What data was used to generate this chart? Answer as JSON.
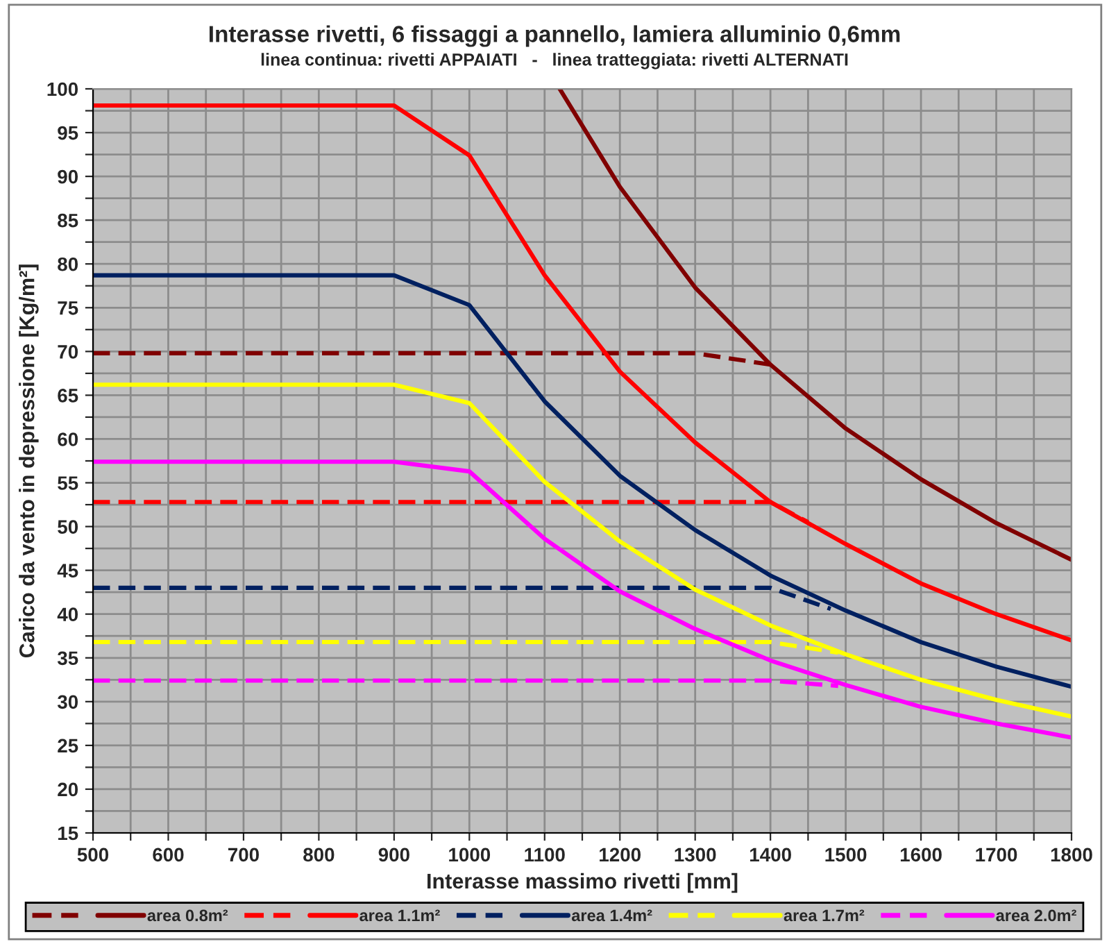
{
  "chart_data": {
    "type": "line",
    "title": "Interasse rivetti, 6 fissaggi a pannello, lamiera alluminio 0,6mm",
    "subtitle": "linea continua: rivetti APPAIATI   -   linea tratteggiata: rivetti ALTERNATI",
    "xlabel": "Interasse massimo rivetti [mm]",
    "ylabel": "Carico da vento in depressione [Kg/m²]",
    "xlim": [
      500,
      1800
    ],
    "ylim": [
      15,
      100
    ],
    "xticks": [
      500,
      {
        "value": 550,
        "label": null
      },
      600,
      {
        "value": 650,
        "label": null
      },
      700,
      {
        "value": 750,
        "label": null
      },
      800,
      {
        "value": 850,
        "label": null
      },
      900,
      {
        "value": 950,
        "label": null
      },
      1000,
      {
        "value": 1050,
        "label": null
      },
      1100,
      {
        "value": 1150,
        "label": null
      },
      1200,
      {
        "value": 1250,
        "label": null
      },
      1300,
      {
        "value": 1350,
        "label": null
      },
      1400,
      {
        "value": 1450,
        "label": null
      },
      1500,
      {
        "value": 1550,
        "label": null
      },
      1600,
      {
        "value": 1650,
        "label": null
      },
      1700,
      {
        "value": 1750,
        "label": null
      },
      1800
    ],
    "yticks": [
      15,
      {
        "value": 17.5,
        "label": null
      },
      20,
      {
        "value": 22.5,
        "label": null
      },
      25,
      {
        "value": 27.5,
        "label": null
      },
      30,
      {
        "value": 32.5,
        "label": null
      },
      35,
      {
        "value": 37.5,
        "label": null
      },
      40,
      {
        "value": 42.5,
        "label": null
      },
      45,
      {
        "value": 47.5,
        "label": null
      },
      50,
      {
        "value": 52.5,
        "label": null
      },
      55,
      {
        "value": 57.5,
        "label": null
      },
      60,
      {
        "value": 62.5,
        "label": null
      },
      65,
      {
        "value": 67.5,
        "label": null
      },
      70,
      {
        "value": 72.5,
        "label": null
      },
      75,
      {
        "value": 77.5,
        "label": null
      },
      80,
      {
        "value": 82.5,
        "label": null
      },
      85,
      {
        "value": 87.5,
        "label": null
      },
      90,
      {
        "value": 92.5,
        "label": null
      },
      95,
      {
        "value": 97.5,
        "label": null
      },
      100
    ],
    "grid": true,
    "legend": "bottom",
    "marker": "none",
    "series": [
      {
        "color": "#800000",
        "line_style": "dashed",
        "x": [
          500,
          600,
          700,
          800,
          900,
          1000,
          1100,
          1200,
          1300,
          1400
        ],
        "values": [
          69.8,
          69.8,
          69.8,
          69.8,
          69.8,
          69.8,
          69.8,
          69.8,
          69.8,
          68.5
        ]
      },
      {
        "name": "area 0.8m²",
        "color": "#800000",
        "line_style": "solid",
        "x": [
          1120,
          1200,
          1300,
          1400,
          1500,
          1600,
          1700,
          1800
        ],
        "values": [
          100,
          88.8,
          77.3,
          68.5,
          61.2,
          55.4,
          50.4,
          46.2
        ]
      },
      {
        "color": "#ff0000",
        "line_style": "dashed",
        "x": [
          500,
          600,
          700,
          800,
          900,
          1000,
          1100,
          1200,
          1300,
          1400,
          1450
        ],
        "values": [
          52.8,
          52.8,
          52.8,
          52.8,
          52.8,
          52.8,
          52.8,
          52.8,
          52.8,
          52.8,
          50.5
        ]
      },
      {
        "name": "area 1.1m²",
        "color": "#ff0000",
        "line_style": "solid",
        "x": [
          500,
          600,
          700,
          800,
          900,
          1000,
          1100,
          1200,
          1300,
          1400,
          1500,
          1600,
          1700,
          1800
        ],
        "values": [
          98.1,
          98.1,
          98.1,
          98.1,
          98.1,
          92.4,
          78.7,
          67.7,
          59.6,
          52.8,
          48.0,
          43.5,
          40.0,
          37.0
        ]
      },
      {
        "color": "#002060",
        "line_style": "dashed",
        "x": [
          500,
          600,
          700,
          800,
          900,
          1000,
          1100,
          1200,
          1300,
          1400,
          1480
        ],
        "values": [
          43.0,
          43.0,
          43.0,
          43.0,
          43.0,
          43.0,
          43.0,
          43.0,
          43.0,
          43.0,
          40.6
        ]
      },
      {
        "name": "area 1.4m²",
        "color": "#002060",
        "line_style": "solid",
        "x": [
          500,
          600,
          700,
          800,
          900,
          1000,
          1100,
          1200,
          1300,
          1400,
          1500,
          1600,
          1700,
          1800
        ],
        "values": [
          78.7,
          78.7,
          78.7,
          78.7,
          78.7,
          75.3,
          64.3,
          55.8,
          49.6,
          44.4,
          40.4,
          36.8,
          34.0,
          31.7
        ]
      },
      {
        "color": "#ffff00",
        "line_style": "dashed",
        "x": [
          500,
          600,
          700,
          800,
          900,
          1000,
          1100,
          1200,
          1300,
          1400,
          1490
        ],
        "values": [
          36.8,
          36.8,
          36.8,
          36.8,
          36.8,
          36.8,
          36.8,
          36.8,
          36.8,
          36.8,
          35.6
        ]
      },
      {
        "name": "area 1.7m²",
        "color": "#ffff00",
        "line_style": "solid",
        "x": [
          500,
          600,
          700,
          800,
          900,
          1000,
          1100,
          1200,
          1300,
          1400,
          1500,
          1600,
          1700,
          1800
        ],
        "values": [
          66.2,
          66.2,
          66.2,
          66.2,
          66.2,
          64.1,
          55.1,
          48.3,
          42.8,
          38.7,
          35.4,
          32.5,
          30.2,
          28.3
        ]
      },
      {
        "color": "#ff00ff",
        "line_style": "dashed",
        "x": [
          500,
          600,
          700,
          800,
          900,
          1000,
          1100,
          1200,
          1300,
          1400,
          1490
        ],
        "values": [
          32.4,
          32.4,
          32.4,
          32.4,
          32.4,
          32.4,
          32.4,
          32.4,
          32.4,
          32.4,
          31.8
        ]
      },
      {
        "name": "area 2.0m²",
        "color": "#ff00ff",
        "line_style": "solid",
        "x": [
          500,
          600,
          700,
          800,
          900,
          1000,
          1100,
          1200,
          1300,
          1400,
          1500,
          1600,
          1700,
          1800
        ],
        "values": [
          57.4,
          57.4,
          57.4,
          57.4,
          57.4,
          56.3,
          48.6,
          42.6,
          38.3,
          34.7,
          31.9,
          29.4,
          27.5,
          25.9
        ]
      }
    ]
  }
}
